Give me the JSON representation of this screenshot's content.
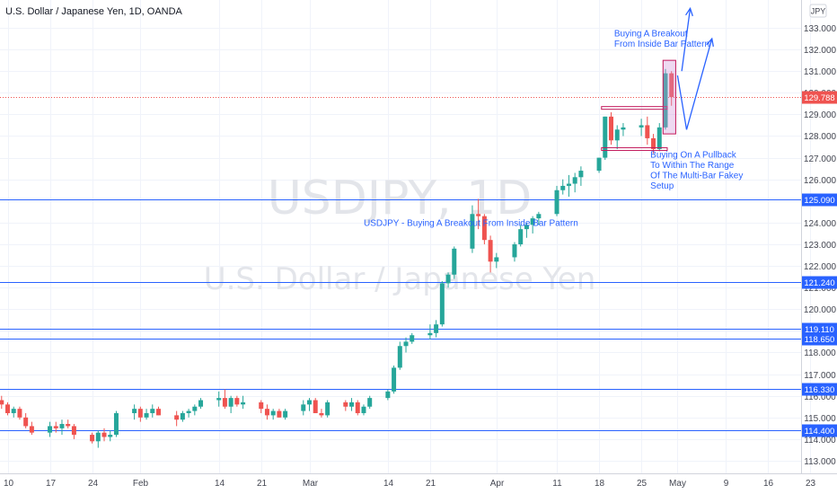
{
  "title": "U.S. Dollar / Japanese Yen, 1D, OANDA",
  "watermark": {
    "symbol": "USDJPY, 1D",
    "name": "U.S. Dollar / Japanese Yen"
  },
  "currency_label": "JPY",
  "colors": {
    "up": "#26a69a",
    "down": "#ef5350",
    "level": "#2962ff",
    "grid": "#f0f3fa",
    "box": "#c2185b"
  },
  "chart_data": {
    "type": "candlestick",
    "title": "U.S. Dollar / Japanese Yen, 1D, OANDA",
    "y_range": [
      112.6,
      134.4
    ],
    "y_ticks": [
      113,
      114,
      115,
      116,
      117,
      118,
      119,
      120,
      121,
      122,
      123,
      124,
      125,
      126,
      127,
      128,
      129,
      130,
      131,
      132,
      133
    ],
    "x_ticks": [
      {
        "label": "10",
        "day": 0
      },
      {
        "label": "17",
        "day": 7
      },
      {
        "label": "24",
        "day": 14
      },
      {
        "label": "Feb",
        "day": 22
      },
      {
        "label": "14",
        "day": 35
      },
      {
        "label": "21",
        "day": 42
      },
      {
        "label": "Mar",
        "day": 50
      },
      {
        "label": "14",
        "day": 63
      },
      {
        "label": "21",
        "day": 70
      },
      {
        "label": "Apr",
        "day": 81
      },
      {
        "label": "11",
        "day": 91
      },
      {
        "label": "18",
        "day": 98
      },
      {
        "label": "25",
        "day": 105
      },
      {
        "label": "May",
        "day": 111
      },
      {
        "label": "9",
        "day": 119
      },
      {
        "label": "16",
        "day": 126
      },
      {
        "label": "23",
        "day": 133
      }
    ],
    "candles": [
      [
        -1,
        115.8,
        116.0,
        115.4,
        115.6
      ],
      [
        0,
        115.6,
        115.7,
        115.1,
        115.2
      ],
      [
        1,
        115.2,
        115.5,
        115.0,
        115.4
      ],
      [
        2,
        115.4,
        115.5,
        114.9,
        115.0
      ],
      [
        3,
        115.0,
        115.2,
        114.5,
        114.6
      ],
      [
        4,
        114.6,
        114.8,
        114.2,
        114.3
      ],
      [
        7,
        114.3,
        114.8,
        114.1,
        114.6
      ],
      [
        8,
        114.6,
        114.8,
        114.3,
        114.5
      ],
      [
        9,
        114.5,
        114.9,
        114.2,
        114.7
      ],
      [
        10,
        114.7,
        114.9,
        114.5,
        114.6
      ],
      [
        11,
        114.6,
        114.7,
        114.0,
        114.2
      ],
      [
        14,
        114.2,
        114.3,
        113.8,
        113.9
      ],
      [
        15,
        113.9,
        114.4,
        113.6,
        114.3
      ],
      [
        16,
        114.3,
        114.5,
        113.9,
        114.1
      ],
      [
        17,
        114.1,
        114.4,
        113.9,
        114.2
      ],
      [
        18,
        114.2,
        115.3,
        114.1,
        115.2
      ],
      [
        21,
        115.2,
        115.6,
        114.9,
        115.4
      ],
      [
        22,
        115.4,
        115.5,
        114.8,
        115.0
      ],
      [
        23,
        115.0,
        115.4,
        114.9,
        115.2
      ],
      [
        24,
        115.2,
        115.6,
        115.0,
        115.4
      ],
      [
        25,
        115.4,
        115.5,
        115.1,
        115.1
      ],
      [
        28,
        115.1,
        115.3,
        114.6,
        114.9
      ],
      [
        29,
        114.9,
        115.3,
        114.8,
        115.2
      ],
      [
        30,
        115.2,
        115.4,
        115.0,
        115.3
      ],
      [
        31,
        115.3,
        115.6,
        115.1,
        115.5
      ],
      [
        32,
        115.5,
        115.9,
        115.4,
        115.8
      ],
      [
        35,
        115.8,
        116.2,
        115.5,
        115.9
      ],
      [
        36,
        115.9,
        116.3,
        115.4,
        115.5
      ],
      [
        37,
        115.5,
        116.0,
        115.2,
        115.9
      ],
      [
        38,
        115.9,
        116.0,
        115.5,
        115.6
      ],
      [
        39,
        115.6,
        116.0,
        115.4,
        115.7
      ],
      [
        42,
        115.7,
        115.8,
        115.2,
        115.4
      ],
      [
        43,
        115.4,
        115.6,
        114.9,
        115.1
      ],
      [
        44,
        115.1,
        115.4,
        114.9,
        115.3
      ],
      [
        45,
        115.3,
        115.4,
        115.0,
        115.0
      ],
      [
        46,
        115.0,
        115.4,
        114.9,
        115.3
      ],
      [
        49,
        115.3,
        115.8,
        115.1,
        115.6
      ],
      [
        50,
        115.6,
        115.9,
        115.3,
        115.8
      ],
      [
        51,
        115.8,
        115.9,
        115.2,
        115.2
      ],
      [
        52,
        115.2,
        115.4,
        115.0,
        115.1
      ],
      [
        53,
        115.1,
        115.8,
        115.0,
        115.7
      ],
      [
        56,
        115.7,
        115.8,
        115.3,
        115.5
      ],
      [
        57,
        115.5,
        115.9,
        115.3,
        115.7
      ],
      [
        58,
        115.7,
        115.8,
        115.1,
        115.2
      ],
      [
        59,
        115.2,
        115.6,
        115.1,
        115.5
      ],
      [
        60,
        115.5,
        116.0,
        115.4,
        115.9
      ],
      [
        63,
        115.9,
        116.3,
        115.8,
        116.2
      ],
      [
        64,
        116.2,
        117.4,
        116.1,
        117.3
      ],
      [
        65,
        117.3,
        118.5,
        117.2,
        118.3
      ],
      [
        66,
        118.3,
        118.7,
        118.0,
        118.5
      ],
      [
        67,
        118.5,
        118.9,
        118.4,
        118.8
      ],
      [
        70,
        118.8,
        119.3,
        118.6,
        118.9
      ],
      [
        71,
        118.9,
        119.5,
        118.7,
        119.3
      ],
      [
        72,
        119.3,
        121.3,
        119.2,
        121.2
      ],
      [
        73,
        121.2,
        121.7,
        121.0,
        121.6
      ],
      [
        74,
        121.6,
        122.9,
        121.4,
        122.8
      ],
      [
        77,
        122.8,
        124.8,
        122.6,
        124.4
      ],
      [
        78,
        124.4,
        125.1,
        123.7,
        124.3
      ],
      [
        79,
        124.3,
        124.4,
        123.0,
        123.2
      ],
      [
        80,
        123.2,
        123.4,
        121.7,
        122.2
      ],
      [
        81,
        122.2,
        122.6,
        121.9,
        122.4
      ],
      [
        84,
        122.4,
        123.1,
        122.2,
        123.0
      ],
      [
        85,
        123.0,
        123.9,
        122.9,
        123.7
      ],
      [
        86,
        123.7,
        124.0,
        123.3,
        123.9
      ],
      [
        87,
        123.9,
        124.3,
        123.5,
        124.2
      ],
      [
        88,
        124.2,
        124.5,
        123.9,
        124.4
      ],
      [
        91,
        124.4,
        125.7,
        124.3,
        125.5
      ],
      [
        92,
        125.5,
        126.0,
        125.3,
        125.7
      ],
      [
        93,
        125.7,
        126.2,
        125.2,
        125.8
      ],
      [
        94,
        125.8,
        126.3,
        125.4,
        126.1
      ],
      [
        95,
        126.1,
        126.6,
        125.7,
        126.4
      ],
      [
        98,
        126.4,
        127.0,
        126.3,
        127.0
      ],
      [
        99,
        127.0,
        128.9,
        126.9,
        128.9
      ],
      [
        100,
        128.9,
        129.1,
        127.6,
        127.8
      ],
      [
        101,
        127.8,
        128.5,
        127.4,
        128.3
      ],
      [
        102,
        128.3,
        128.6,
        128.0,
        128.4
      ],
      [
        105,
        128.4,
        128.8,
        128.0,
        128.5
      ],
      [
        106,
        128.5,
        128.9,
        127.6,
        127.9
      ],
      [
        107,
        127.9,
        128.1,
        127.2,
        127.4
      ],
      [
        108,
        127.4,
        128.6,
        127.3,
        128.4
      ],
      [
        109,
        128.4,
        131.1,
        128.3,
        130.9
      ],
      [
        110,
        130.9,
        131.0,
        129.4,
        129.8
      ]
    ],
    "levels": [
      {
        "value": 125.09,
        "label": "125.090"
      },
      {
        "value": 121.24,
        "label": "121.240"
      },
      {
        "value": 119.11,
        "label": "119.110"
      },
      {
        "value": 118.65,
        "label": "118.650"
      },
      {
        "value": 116.33,
        "label": "116.330"
      },
      {
        "value": 114.4,
        "label": "114.400"
      }
    ],
    "last_price": {
      "value": 129.788,
      "label": "129.788"
    },
    "inside_bar_lines": [
      {
        "value": 129.3,
        "from_day": 99,
        "to_day": 109
      },
      {
        "value": 127.4,
        "from_day": 99,
        "to_day": 109
      }
    ],
    "breakout_box": {
      "from_day": 108.6,
      "to_day": 110.7,
      "low": 128.1,
      "high": 131.5
    },
    "arrows": [
      {
        "points": [
          [
            111.7,
            131.0
          ],
          [
            113.1,
            133.9
          ]
        ]
      },
      {
        "points": [
          [
            111.0,
            130.8
          ],
          [
            112.5,
            128.3
          ],
          [
            116.7,
            132.5
          ]
        ]
      }
    ],
    "annotations": [
      {
        "lines": [
          "Buying A Breakout",
          "From Inside Bar Pattern"
        ],
        "day": 100.5,
        "price": 132.6
      },
      {
        "lines": [
          "Buying On A Pullback",
          "To Within The Range",
          "Of The Multi-Bar Fakey",
          "Setup"
        ],
        "day": 106.5,
        "price": 127.0
      },
      {
        "lines": [
          "USDJPY - Buying A Breakout From Inside Bar Pattern"
        ],
        "day": 59.0,
        "price": 123.85
      }
    ]
  }
}
